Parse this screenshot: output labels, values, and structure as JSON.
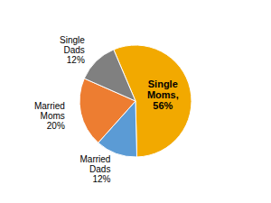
{
  "chart_data": {
    "type": "pie",
    "categories": [
      "Single\nMoms,\n56%",
      "Married\nDads\n12%",
      "Married\nMoms\n20%",
      "Single\nDads\n12%"
    ],
    "values": [
      56,
      12,
      20,
      12
    ],
    "colors": [
      "#F2A900",
      "#5B9BD5",
      "#ED7D31",
      "#808080"
    ]
  }
}
